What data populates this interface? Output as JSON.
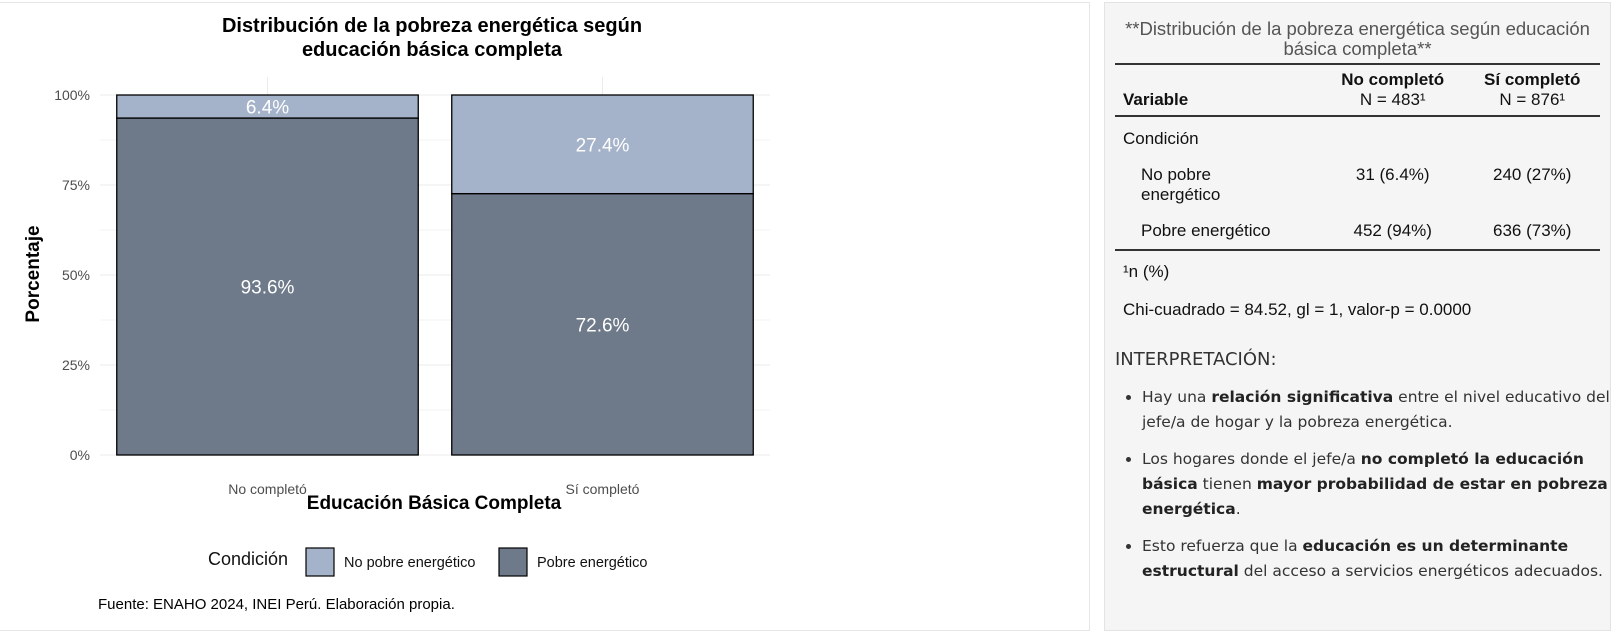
{
  "chart_data": {
    "type": "bar",
    "stacked": true,
    "percent": true,
    "title_line1": "Distribución de la pobreza energética según",
    "title_line2": "educación básica completa",
    "xlabel": "Educación Básica Completa",
    "ylabel": "Porcentaje",
    "categories": [
      "No completó",
      "Sí completó"
    ],
    "yticks": [
      "0%",
      "25%",
      "50%",
      "75%",
      "100%"
    ],
    "ylim": [
      0,
      100
    ],
    "series": [
      {
        "name": "Pobre energético",
        "values": [
          93.6,
          72.6
        ],
        "labels": [
          "93.6%",
          "72.6%"
        ],
        "color": "#6e7a8a"
      },
      {
        "name": "No pobre energético",
        "values": [
          6.4,
          27.4
        ],
        "labels": [
          "6.4%",
          "27.4%"
        ],
        "color": "#a4b2ca"
      }
    ],
    "legend": {
      "title": "Condición",
      "position": "bottom",
      "items": [
        {
          "label": "No pobre energético",
          "color": "#a4b2ca"
        },
        {
          "label": "Pobre energético",
          "color": "#6e7a8a"
        }
      ]
    },
    "grid": true
  },
  "source_note": "Fuente: ENAHO 2024, INEI Perú. Elaboración propia.",
  "summary_table": {
    "caption": "**Distribución de la pobreza energética según educación básica completa**",
    "headers": {
      "variable": "Variable",
      "col1": "No completó",
      "col1_n": "N = 483¹",
      "col2": "Sí completó",
      "col2_n": "N = 876¹"
    },
    "group_label": "Condición",
    "rows": [
      {
        "label": "No pobre energético",
        "col1": "31 (6.4%)",
        "col2": "240 (27%)"
      },
      {
        "label": "Pobre energético",
        "col1": "452 (94%)",
        "col2": "636 (73%)"
      }
    ],
    "footnote": "¹n (%)",
    "chi_square": "Chi-cuadrado = 84.52, gl = 1, valor-p = 0.0000"
  },
  "interpretation": {
    "title": "INTERPRETACIÓN:",
    "b1_pre": "Hay una ",
    "b1_bold": "relación significativa",
    "b1_post": " entre el nivel educativo del jefe/a de hogar y la pobreza energética.",
    "b2_pre": "Los hogares donde el jefe/a ",
    "b2_bold1": "no completó la educación básica",
    "b2_mid": " tienen ",
    "b2_bold2": "mayor probabilidad de estar en pobreza energética",
    "b2_post": ".",
    "b3_pre": "Esto refuerza que la ",
    "b3_bold": "educación es un determinante estructural",
    "b3_post": " del acceso a servicios energéticos adecuados."
  }
}
